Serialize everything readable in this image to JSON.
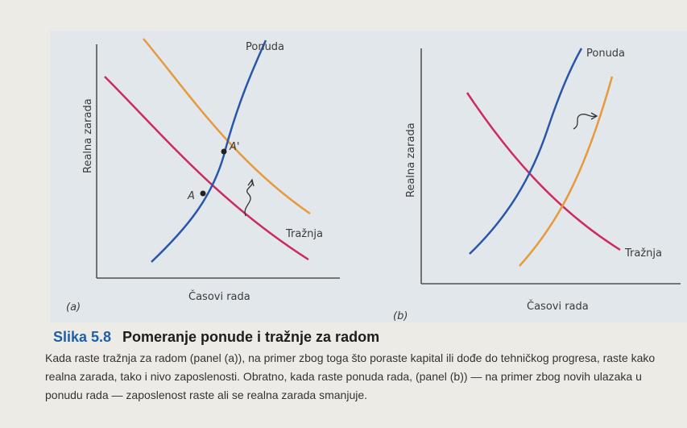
{
  "panels": [
    {
      "label": "(a)",
      "y_axis_label": "Realna zarada",
      "x_axis_label": "Časovi rada",
      "supply_label": "Ponuda",
      "demand_label": "Tražnja",
      "points": [
        "A",
        "A'"
      ]
    },
    {
      "label": "(b)",
      "y_axis_label": "Realna zarada",
      "x_axis_label": "Časovi rada",
      "supply_label": "Ponuda",
      "demand_label": "Tražnja"
    }
  ],
  "caption": {
    "number": "Slika 5.8",
    "title": "Pomeranje ponude i tražnje za radom",
    "lines": [
      "Kada raste tražnja za radom (panel (a)), na primer zbog toga što poraste kapital ili dođe do tehničkog progresa, raste kako",
      "realna zarada, tako i nivo zaposlenosti. Obratno, kada raste ponuda rada, (panel (b)) — na primer zbog novih ulazaka u",
      "ponudu rada — zaposlenost raste ali se realna zarada smanjuje."
    ]
  }
}
